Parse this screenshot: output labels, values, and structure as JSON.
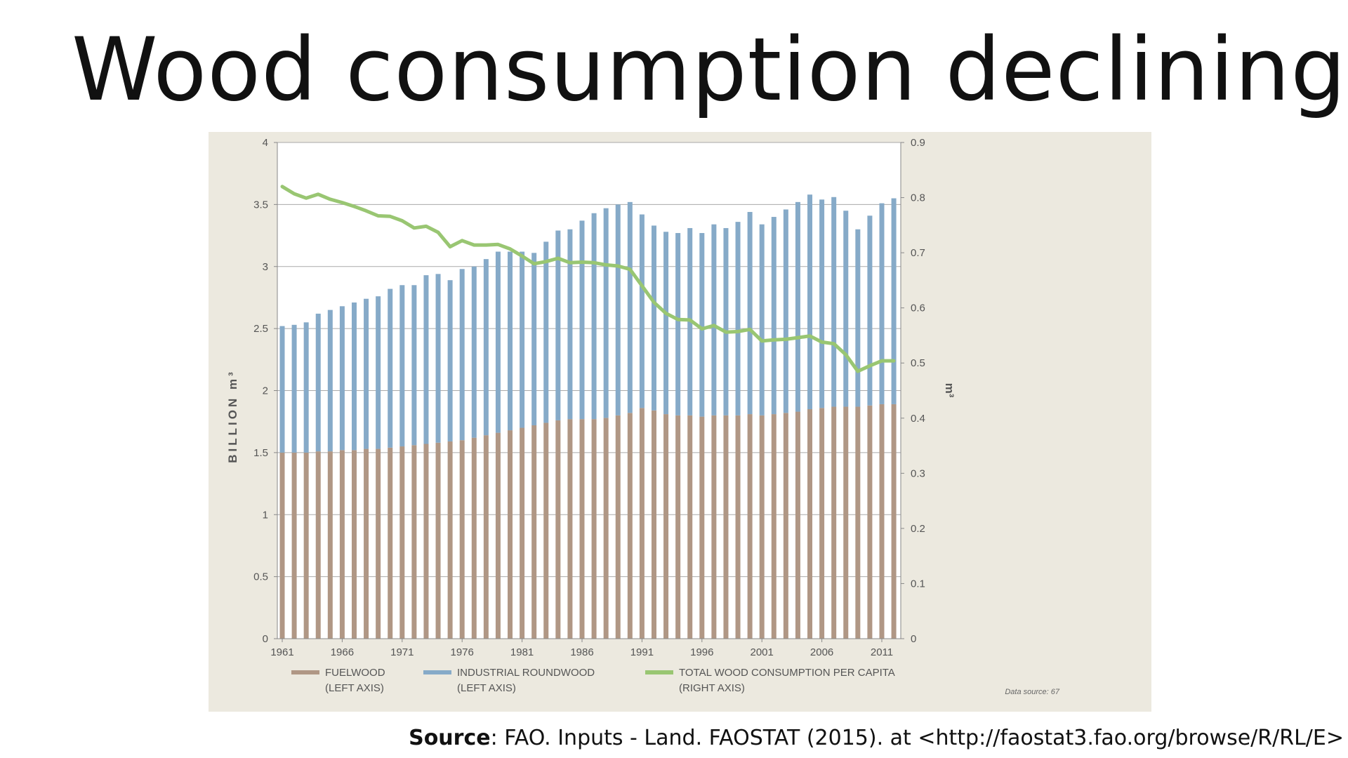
{
  "slide": {
    "title": "Wood consumption declining",
    "source_label": "Source",
    "source_text": ": FAO. Inputs - Land. FAOSTAT (2015). at <http://faostat3.fao.org/browse/R/RL/E>"
  },
  "colors": {
    "fuelwood": "#b09785",
    "industrial": "#86aac8",
    "per_capita": "#99c672",
    "panel_bg": "#ece9df",
    "plot_bg": "#ffffff",
    "grid": "#a9a9a9",
    "axis_text": "#555555"
  },
  "chart_data": {
    "type": "bar",
    "stacked": true,
    "years": [
      1961,
      1962,
      1963,
      1964,
      1965,
      1966,
      1967,
      1968,
      1969,
      1970,
      1971,
      1972,
      1973,
      1974,
      1975,
      1976,
      1977,
      1978,
      1979,
      1980,
      1981,
      1982,
      1983,
      1984,
      1985,
      1986,
      1987,
      1988,
      1989,
      1990,
      1991,
      1992,
      1993,
      1994,
      1995,
      1996,
      1997,
      1998,
      1999,
      2000,
      2001,
      2002,
      2003,
      2004,
      2005,
      2006,
      2007,
      2008,
      2009,
      2010,
      2011,
      2012
    ],
    "x_tick_labels": [
      "1961",
      "1966",
      "1971",
      "1976",
      "1981",
      "1986",
      "1991",
      "1996",
      "2001",
      "2006",
      "2011"
    ],
    "left_axis": {
      "label": "BILLION m³",
      "ylim": [
        0,
        4
      ],
      "ticks": [
        "0",
        "0.5",
        "1",
        "1.5",
        "2",
        "2.5",
        "3",
        "3.5",
        "4"
      ]
    },
    "right_axis": {
      "label": "m³",
      "ylim": [
        0,
        0.9
      ],
      "ticks": [
        "0",
        "0.1",
        "0.2",
        "0.3",
        "0.4",
        "0.5",
        "0.6",
        "0.7",
        "0.8",
        "0.9"
      ]
    },
    "series": [
      {
        "name": "FUELWOOD",
        "sub": "(LEFT AXIS)",
        "kind": "bar",
        "axis": "left",
        "values": [
          1.5,
          1.5,
          1.5,
          1.51,
          1.51,
          1.52,
          1.52,
          1.53,
          1.53,
          1.54,
          1.55,
          1.56,
          1.57,
          1.58,
          1.59,
          1.6,
          1.62,
          1.64,
          1.66,
          1.68,
          1.7,
          1.72,
          1.74,
          1.76,
          1.77,
          1.77,
          1.77,
          1.78,
          1.8,
          1.82,
          1.86,
          1.84,
          1.81,
          1.8,
          1.8,
          1.79,
          1.8,
          1.8,
          1.8,
          1.81,
          1.8,
          1.81,
          1.82,
          1.83,
          1.85,
          1.86,
          1.87,
          1.87,
          1.87,
          1.88,
          1.89,
          1.89
        ]
      },
      {
        "name": "INDUSTRIAL ROUNDWOOD",
        "sub": "(LEFT AXIS)",
        "kind": "bar",
        "axis": "left",
        "values": [
          1.02,
          1.03,
          1.05,
          1.11,
          1.14,
          1.16,
          1.19,
          1.21,
          1.23,
          1.28,
          1.3,
          1.29,
          1.36,
          1.36,
          1.3,
          1.38,
          1.38,
          1.42,
          1.46,
          1.44,
          1.42,
          1.39,
          1.46,
          1.53,
          1.53,
          1.6,
          1.66,
          1.69,
          1.7,
          1.7,
          1.56,
          1.49,
          1.47,
          1.47,
          1.51,
          1.48,
          1.54,
          1.51,
          1.56,
          1.63,
          1.54,
          1.59,
          1.64,
          1.69,
          1.73,
          1.68,
          1.69,
          1.58,
          1.43,
          1.53,
          1.62,
          1.66
        ]
      },
      {
        "name": "TOTAL WOOD CONSUMPTION PER CAPITA",
        "sub": "(RIGHT AXIS)",
        "kind": "line",
        "axis": "right",
        "values": [
          0.82,
          0.807,
          0.799,
          0.806,
          0.797,
          0.791,
          0.784,
          0.776,
          0.767,
          0.766,
          0.758,
          0.745,
          0.748,
          0.737,
          0.711,
          0.722,
          0.714,
          0.714,
          0.715,
          0.707,
          0.694,
          0.68,
          0.684,
          0.69,
          0.682,
          0.683,
          0.682,
          0.678,
          0.676,
          0.67,
          0.64,
          0.61,
          0.59,
          0.579,
          0.578,
          0.562,
          0.568,
          0.556,
          0.557,
          0.561,
          0.54,
          0.542,
          0.543,
          0.546,
          0.549,
          0.538,
          0.535,
          0.515,
          0.485,
          0.495,
          0.504,
          0.504
        ]
      }
    ],
    "data_source_note": "Data source: 67"
  }
}
